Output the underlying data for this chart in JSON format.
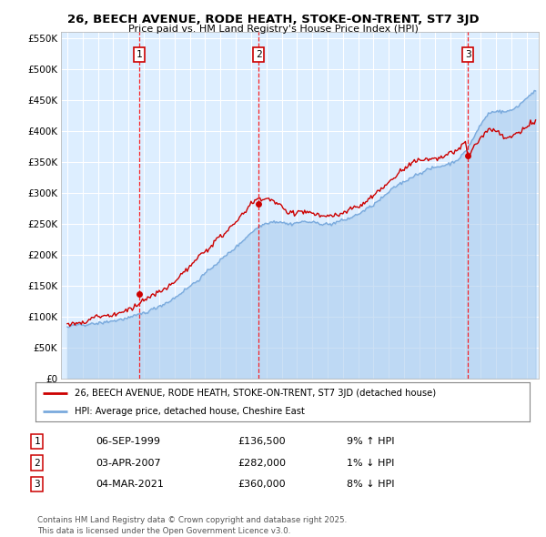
{
  "title_line1": "26, BEECH AVENUE, RODE HEATH, STOKE-ON-TRENT, ST7 3JD",
  "title_line2": "Price paid vs. HM Land Registry's House Price Index (HPI)",
  "background_color": "#ffffff",
  "plot_bg_color": "#ddeeff",
  "grid_color": "#ffffff",
  "sale_color": "#cc0000",
  "hpi_color": "#7aaadd",
  "hpi_fill_color": "#aaccee",
  "sale_label": "26, BEECH AVENUE, RODE HEATH, STOKE-ON-TRENT, ST7 3JD (detached house)",
  "hpi_label": "HPI: Average price, detached house, Cheshire East",
  "ylim_min": 0,
  "ylim_max": 560000,
  "ytick_vals": [
    0,
    50000,
    100000,
    150000,
    200000,
    250000,
    300000,
    350000,
    400000,
    450000,
    500000,
    550000
  ],
  "ytick_labels": [
    "£0",
    "£50K",
    "£100K",
    "£150K",
    "£200K",
    "£250K",
    "£300K",
    "£350K",
    "£400K",
    "£450K",
    "£500K",
    "£550K"
  ],
  "sale_dates": [
    1999.68,
    2007.5,
    2021.17
  ],
  "sale_prices": [
    136500,
    282000,
    360000
  ],
  "sale_numbers": [
    "1",
    "2",
    "3"
  ],
  "table_data": [
    [
      "1",
      "06-SEP-1999",
      "£136,500",
      "9% ↑ HPI"
    ],
    [
      "2",
      "03-APR-2007",
      "£282,000",
      "1% ↓ HPI"
    ],
    [
      "3",
      "04-MAR-2021",
      "£360,000",
      "8% ↓ HPI"
    ]
  ],
  "footer_text": "Contains HM Land Registry data © Crown copyright and database right 2025.\nThis data is licensed under the Open Government Licence v3.0.",
  "xmin": 1994.6,
  "xmax": 2025.8,
  "xtick_start": 1995,
  "xtick_end": 2026,
  "hpi_control_points": [
    [
      1995.0,
      82000
    ],
    [
      1995.5,
      83500
    ],
    [
      1996.0,
      85000
    ],
    [
      1996.5,
      87000
    ],
    [
      1997.0,
      89000
    ],
    [
      1997.5,
      91500
    ],
    [
      1998.0,
      94000
    ],
    [
      1998.5,
      97000
    ],
    [
      1999.0,
      100000
    ],
    [
      1999.5,
      104000
    ],
    [
      2000.0,
      108000
    ],
    [
      2000.5,
      113000
    ],
    [
      2001.0,
      118000
    ],
    [
      2001.5,
      124000
    ],
    [
      2002.0,
      132000
    ],
    [
      2002.5,
      141000
    ],
    [
      2003.0,
      151000
    ],
    [
      2003.5,
      161000
    ],
    [
      2004.0,
      172000
    ],
    [
      2004.5,
      183000
    ],
    [
      2005.0,
      193000
    ],
    [
      2005.5,
      203000
    ],
    [
      2006.0,
      214000
    ],
    [
      2006.5,
      226000
    ],
    [
      2007.0,
      238000
    ],
    [
      2007.5,
      248000
    ],
    [
      2008.0,
      254000
    ],
    [
      2008.5,
      256000
    ],
    [
      2009.0,
      254000
    ],
    [
      2009.5,
      251000
    ],
    [
      2010.0,
      252000
    ],
    [
      2010.5,
      254000
    ],
    [
      2011.0,
      253000
    ],
    [
      2011.5,
      252000
    ],
    [
      2012.0,
      250000
    ],
    [
      2012.5,
      251000
    ],
    [
      2013.0,
      254000
    ],
    [
      2013.5,
      258000
    ],
    [
      2014.0,
      265000
    ],
    [
      2014.5,
      272000
    ],
    [
      2015.0,
      280000
    ],
    [
      2015.5,
      290000
    ],
    [
      2016.0,
      300000
    ],
    [
      2016.5,
      310000
    ],
    [
      2017.0,
      318000
    ],
    [
      2017.5,
      326000
    ],
    [
      2018.0,
      332000
    ],
    [
      2018.5,
      337000
    ],
    [
      2019.0,
      341000
    ],
    [
      2019.5,
      344000
    ],
    [
      2020.0,
      347000
    ],
    [
      2020.5,
      353000
    ],
    [
      2021.0,
      365000
    ],
    [
      2021.5,
      385000
    ],
    [
      2022.0,
      408000
    ],
    [
      2022.5,
      425000
    ],
    [
      2023.0,
      430000
    ],
    [
      2023.5,
      428000
    ],
    [
      2024.0,
      432000
    ],
    [
      2024.5,
      440000
    ],
    [
      2025.0,
      452000
    ],
    [
      2025.5,
      462000
    ]
  ],
  "red_control_points": [
    [
      1995.0,
      88000
    ],
    [
      1995.5,
      90000
    ],
    [
      1996.0,
      92000
    ],
    [
      1996.5,
      95000
    ],
    [
      1997.0,
      98000
    ],
    [
      1997.5,
      101000
    ],
    [
      1998.0,
      105000
    ],
    [
      1998.5,
      109000
    ],
    [
      1999.0,
      113000
    ],
    [
      1999.5,
      118000
    ],
    [
      2000.0,
      123000
    ],
    [
      2000.5,
      129000
    ],
    [
      2001.0,
      136000
    ],
    [
      2001.5,
      144000
    ],
    [
      2002.0,
      155000
    ],
    [
      2002.5,
      166000
    ],
    [
      2003.0,
      178000
    ],
    [
      2003.5,
      191000
    ],
    [
      2004.0,
      204000
    ],
    [
      2004.5,
      216000
    ],
    [
      2005.0,
      227000
    ],
    [
      2005.5,
      238000
    ],
    [
      2006.0,
      250000
    ],
    [
      2006.5,
      264000
    ],
    [
      2007.0,
      278000
    ],
    [
      2007.25,
      282000
    ],
    [
      2007.5,
      285000
    ],
    [
      2008.0,
      288000
    ],
    [
      2008.5,
      282000
    ],
    [
      2009.0,
      272000
    ],
    [
      2009.5,
      264000
    ],
    [
      2010.0,
      264000
    ],
    [
      2010.5,
      266000
    ],
    [
      2011.0,
      264000
    ],
    [
      2011.5,
      262000
    ],
    [
      2012.0,
      259000
    ],
    [
      2012.5,
      261000
    ],
    [
      2013.0,
      265000
    ],
    [
      2013.5,
      271000
    ],
    [
      2014.0,
      279000
    ],
    [
      2014.5,
      287000
    ],
    [
      2015.0,
      296000
    ],
    [
      2015.5,
      308000
    ],
    [
      2016.0,
      319000
    ],
    [
      2016.5,
      330000
    ],
    [
      2017.0,
      340000
    ],
    [
      2017.5,
      348000
    ],
    [
      2018.0,
      354000
    ],
    [
      2018.5,
      358000
    ],
    [
      2019.0,
      362000
    ],
    [
      2019.5,
      365000
    ],
    [
      2020.0,
      368000
    ],
    [
      2020.5,
      374000
    ],
    [
      2021.0,
      385000
    ],
    [
      2021.17,
      360000
    ],
    [
      2021.5,
      375000
    ],
    [
      2022.0,
      395000
    ],
    [
      2022.5,
      408000
    ],
    [
      2023.0,
      405000
    ],
    [
      2023.5,
      395000
    ],
    [
      2024.0,
      398000
    ],
    [
      2024.5,
      405000
    ],
    [
      2025.0,
      415000
    ],
    [
      2025.5,
      425000
    ]
  ]
}
